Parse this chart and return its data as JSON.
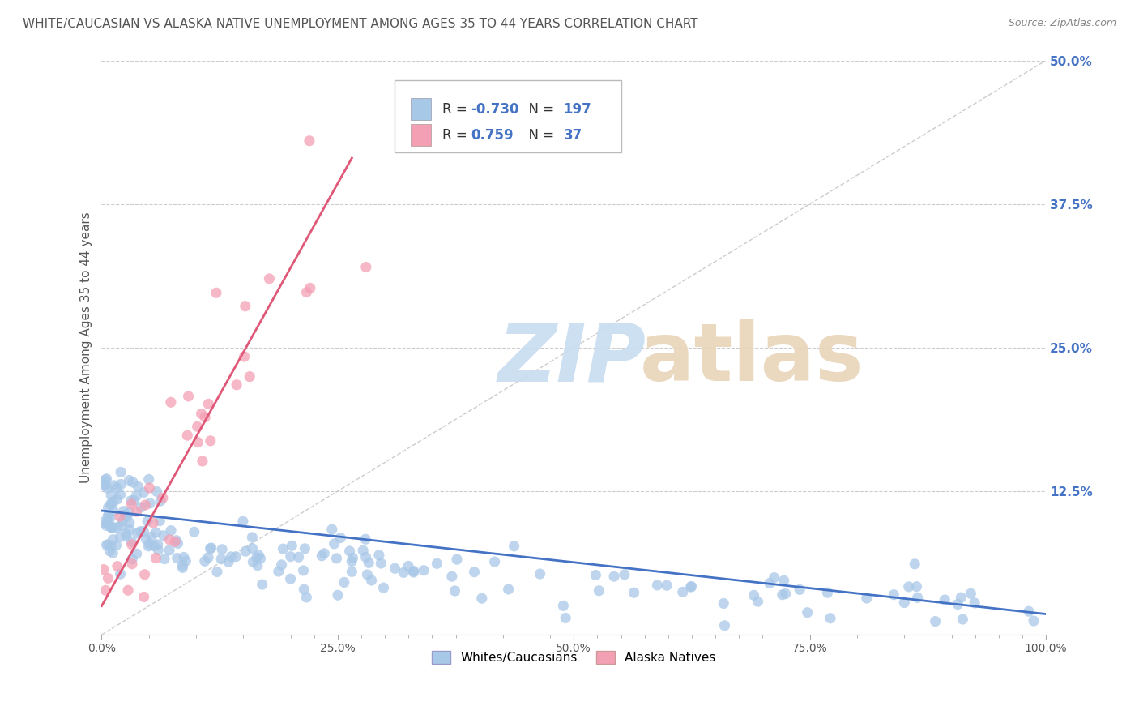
{
  "title": "WHITE/CAUCASIAN VS ALASKA NATIVE UNEMPLOYMENT AMONG AGES 35 TO 44 YEARS CORRELATION CHART",
  "source": "Source: ZipAtlas.com",
  "ylabel": "Unemployment Among Ages 35 to 44 years",
  "xmin": 0.0,
  "xmax": 1.0,
  "ymin": 0.0,
  "ymax": 0.5,
  "blue_R": -0.73,
  "blue_N": 197,
  "pink_R": 0.759,
  "pink_N": 37,
  "blue_color": "#A8C8E8",
  "pink_color": "#F4A0B4",
  "blue_line_color": "#4472C4",
  "pink_line_color": "#E05878",
  "legend_blue_label": "Whites/Caucasians",
  "legend_pink_label": "Alaska Natives",
  "background_color": "#ffffff",
  "grid_color": "#cccccc",
  "title_color": "#555555",
  "source_color": "#888888",
  "blue_trend_y_start": 0.108,
  "blue_trend_y_end": 0.018,
  "pink_trend_x_start": 0.0,
  "pink_trend_x_end": 0.265,
  "pink_trend_y_start": 0.025,
  "pink_trend_y_end": 0.415,
  "yticks": [
    0.0,
    0.125,
    0.25,
    0.375,
    0.5
  ],
  "ytick_labels": [
    "",
    "12.5%",
    "25.0%",
    "37.5%",
    "50.0%"
  ],
  "xticks": [
    0.0,
    0.25,
    0.5,
    0.75,
    1.0
  ],
  "xtick_labels": [
    "0.0%",
    "25.0%",
    "50.0%",
    "75.0%",
    "100.0%"
  ]
}
